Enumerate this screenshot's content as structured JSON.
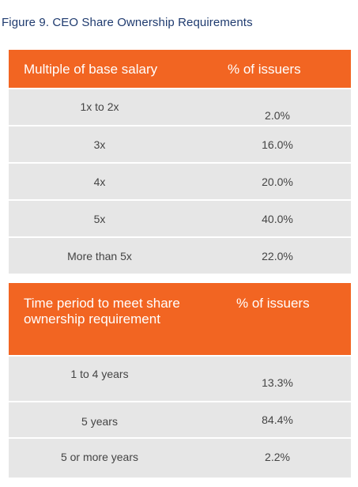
{
  "figure": {
    "title": "Figure 9. CEO Share Ownership Requirements"
  },
  "table1": {
    "header": {
      "col1": "Multiple of base salary",
      "col2": "% of issuers"
    },
    "rows": [
      {
        "label": "1x to 2x",
        "value": "2.0%"
      },
      {
        "label": "3x",
        "value": "16.0%"
      },
      {
        "label": "4x",
        "value": "20.0%"
      },
      {
        "label": "5x",
        "value": "40.0%"
      },
      {
        "label": "More than 5x",
        "value": "22.0%"
      }
    ]
  },
  "table2": {
    "header": {
      "col1": "Time period to meet share ownership requirement",
      "col2": "% of issuers"
    },
    "rows": [
      {
        "label": "1 to 4 years",
        "value": "13.3%"
      },
      {
        "label": "5 years",
        "value": "84.4%"
      },
      {
        "label": "5 or more years",
        "value": "2.2%"
      }
    ]
  },
  "colors": {
    "header_bg": "#f26522",
    "row_bg": "#e6e6e6",
    "title_text": "#1f3b6f"
  }
}
